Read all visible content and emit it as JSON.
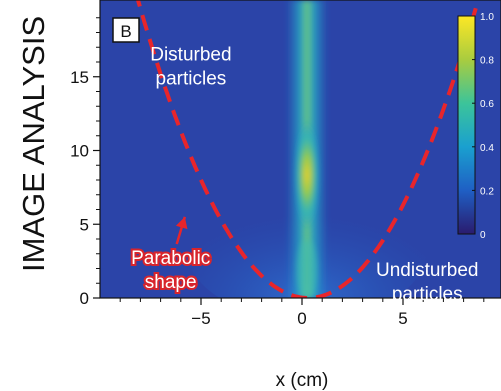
{
  "chart_data": {
    "type": "heatmap",
    "side_title": "IMAGE ANALYSIS",
    "panel_letter": "B",
    "xlabel": "x (cm)",
    "ylabel": "",
    "xlim": [
      -9.5,
      9.5
    ],
    "ylim": [
      0,
      18
    ],
    "x_ticks": [
      -5,
      0,
      5
    ],
    "y_ticks": [
      0,
      5,
      10,
      15
    ],
    "colorbar": {
      "min": 0,
      "max": 1.0,
      "tick_values": [
        0,
        0.2,
        0.4,
        0.6,
        0.8,
        1.0
      ],
      "tick_labels": [
        "0",
        "0.2",
        "0.4",
        "0.6",
        "0.8",
        "1.0"
      ],
      "colormap": [
        "#2a1b6e",
        "#1f5fc4",
        "#1aa0cf",
        "#3cc49a",
        "#a9cc3f",
        "#fde725"
      ]
    },
    "parabola": {
      "vertex": [
        0.3,
        0
      ],
      "coefficient": 0.285,
      "color": "#e8252b",
      "style": "dashed"
    },
    "annotations": [
      {
        "text_lines": [
          "Disturbed",
          "particles"
        ],
        "x": -5.5,
        "y": 16.1
      },
      {
        "text_lines": [
          "Parabolic",
          "shape"
        ],
        "x": -6.5,
        "y": 2.3,
        "style": "red-outline",
        "arrow_to": [
          -5.8,
          5.5
        ]
      },
      {
        "text_lines": [
          "Undisturbed",
          "particles"
        ],
        "x": 6.2,
        "y": 1.5
      }
    ]
  }
}
